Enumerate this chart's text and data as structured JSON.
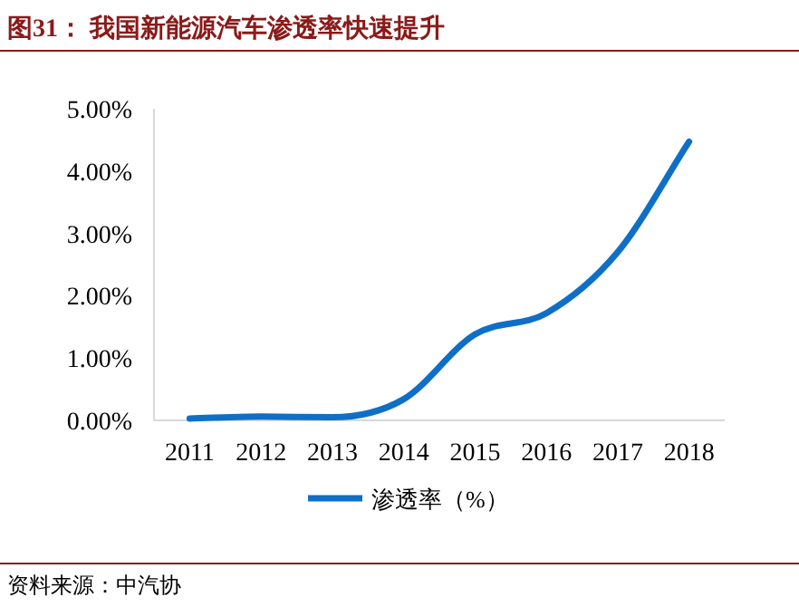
{
  "chart_data": {
    "type": "line",
    "title": "图31：    我国新能源汽车渗透率快速提升",
    "categories": [
      "2011",
      "2012",
      "2013",
      "2014",
      "2015",
      "2016",
      "2017",
      "2018"
    ],
    "series": [
      {
        "name": "渗透率（%）",
        "color": "#0f6fc6",
        "values": [
          0.03,
          0.06,
          0.05,
          0.34,
          1.38,
          1.72,
          2.7,
          4.47
        ]
      }
    ],
    "ylim": [
      0,
      5
    ],
    "yticks": [
      {
        "value": 0,
        "label": "0.00%"
      },
      {
        "value": 1,
        "label": "1.00%"
      },
      {
        "value": 2,
        "label": "2.00%"
      },
      {
        "value": 3,
        "label": "3.00%"
      },
      {
        "value": 4,
        "label": "4.00%"
      },
      {
        "value": 5,
        "label": "5.00%"
      }
    ],
    "legend": "bottom",
    "annotations": [
      "资料来源：中汽协"
    ]
  }
}
